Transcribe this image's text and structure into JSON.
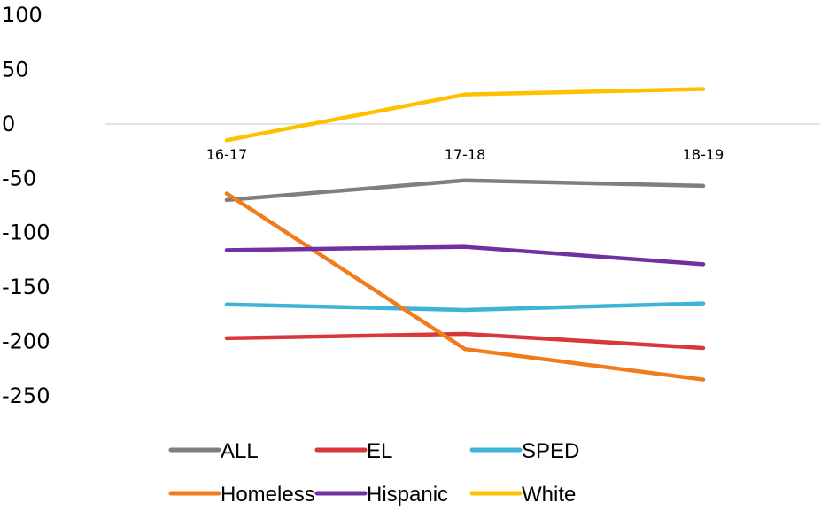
{
  "chart_data": {
    "type": "line",
    "categories": [
      "16-17",
      "17-18",
      "18-19"
    ],
    "yticks": [
      "100",
      "50",
      "0",
      "-50",
      "-100",
      "-150",
      "-200",
      "-250"
    ],
    "ytick_values": [
      100,
      50,
      0,
      -50,
      -100,
      -150,
      -200,
      -250
    ],
    "ylim": [
      -250,
      100
    ],
    "grid": false,
    "legend_position": "bottom",
    "series": [
      {
        "name": "ALL",
        "values": [
          -70,
          -52,
          -57
        ],
        "color": "#7f7f7f"
      },
      {
        "name": "EL",
        "values": [
          -197,
          -193,
          -206
        ],
        "color": "#d9383a"
      },
      {
        "name": "SPED",
        "values": [
          -166,
          -171,
          -165
        ],
        "color": "#3fb5d6"
      },
      {
        "name": "Homeless",
        "values": [
          -64,
          -207,
          -235
        ],
        "color": "#f07c1b"
      },
      {
        "name": "Hispanic",
        "values": [
          -116,
          -113,
          -129
        ],
        "color": "#7030a0"
      },
      {
        "name": "White",
        "values": [
          -15,
          27,
          32
        ],
        "color": "#ffc000"
      }
    ]
  }
}
